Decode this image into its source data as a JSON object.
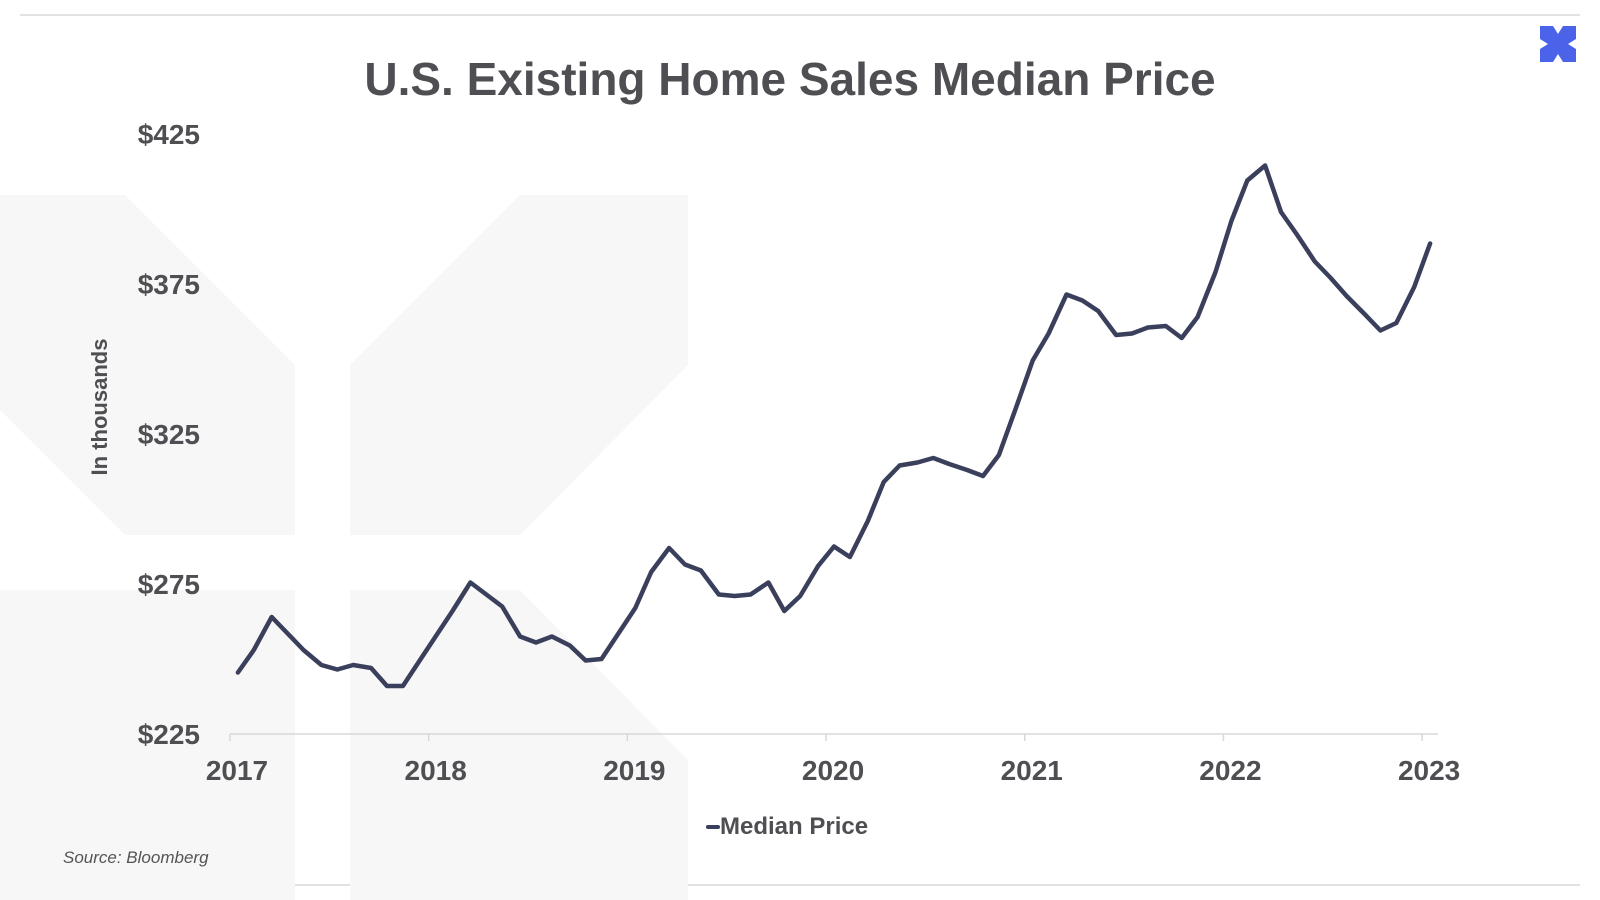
{
  "chart_data": {
    "type": "line",
    "title": "U.S. Existing Home Sales Median Price",
    "ylabel": "In thousands",
    "xlabel": "",
    "ylim": [
      225,
      425
    ],
    "xlim": [
      2017,
      2023.08
    ],
    "yticks": [
      225,
      275,
      325,
      375,
      425
    ],
    "ytick_labels": [
      "$225",
      "$275",
      "$325",
      "$375",
      "$425"
    ],
    "xticks": [
      2017,
      2018,
      2019,
      2020,
      2021,
      2022,
      2023
    ],
    "xtick_labels": [
      "2017",
      "2018",
      "2019",
      "2020",
      "2021",
      "2022",
      "2023"
    ],
    "legend": "bottom-center",
    "grid": false,
    "series": [
      {
        "name": "Median Price",
        "color": "#3a3f5c",
        "x": [
          2017.04,
          2017.12,
          2017.21,
          2017.29,
          2017.37,
          2017.46,
          2017.54,
          2017.62,
          2017.71,
          2017.79,
          2017.87,
          2017.96,
          2018.04,
          2018.12,
          2018.21,
          2018.29,
          2018.37,
          2018.46,
          2018.54,
          2018.62,
          2018.71,
          2018.79,
          2018.87,
          2018.96,
          2019.04,
          2019.12,
          2019.21,
          2019.29,
          2019.37,
          2019.46,
          2019.54,
          2019.62,
          2019.71,
          2019.79,
          2019.87,
          2019.96,
          2020.04,
          2020.12,
          2020.21,
          2020.29,
          2020.37,
          2020.46,
          2020.54,
          2020.62,
          2020.71,
          2020.79,
          2020.87,
          2020.96,
          2021.04,
          2021.12,
          2021.21,
          2021.29,
          2021.37,
          2021.46,
          2021.54,
          2021.62,
          2021.71,
          2021.79,
          2021.87,
          2021.96,
          2022.04,
          2022.12,
          2022.21,
          2022.29,
          2022.37,
          2022.46,
          2022.54,
          2022.62,
          2022.71,
          2022.79,
          2022.87,
          2022.96,
          2023.04
        ],
        "values": [
          245.5,
          253,
          264,
          258.5,
          253,
          248,
          246.5,
          248,
          247,
          241,
          241,
          250,
          258,
          266,
          275.5,
          271.5,
          267.5,
          257.5,
          255.5,
          257.5,
          254.5,
          249.5,
          250,
          259,
          267,
          279,
          287,
          281.5,
          279.5,
          271.5,
          271,
          271.5,
          275.5,
          266,
          271,
          281,
          287.5,
          284,
          296,
          309,
          314.5,
          315.5,
          317,
          315,
          313,
          311,
          318,
          334.5,
          349.5,
          358.5,
          371.5,
          369.5,
          366,
          358,
          358.5,
          360.5,
          361,
          357,
          364,
          379,
          396,
          409.5,
          414.5,
          399,
          391.5,
          382.5,
          377,
          371,
          365,
          359.5,
          362,
          374,
          388.5
        ]
      }
    ]
  },
  "legend": {
    "label": "Median Price"
  },
  "source": {
    "text": "Source: Bloomberg"
  },
  "colors": {
    "line": "#3a3f5c",
    "text": "#4f4f53",
    "logo": "#4a63e8",
    "watermark": "#f7f7f7"
  },
  "logo": {
    "icon": "brand-x-icon"
  }
}
